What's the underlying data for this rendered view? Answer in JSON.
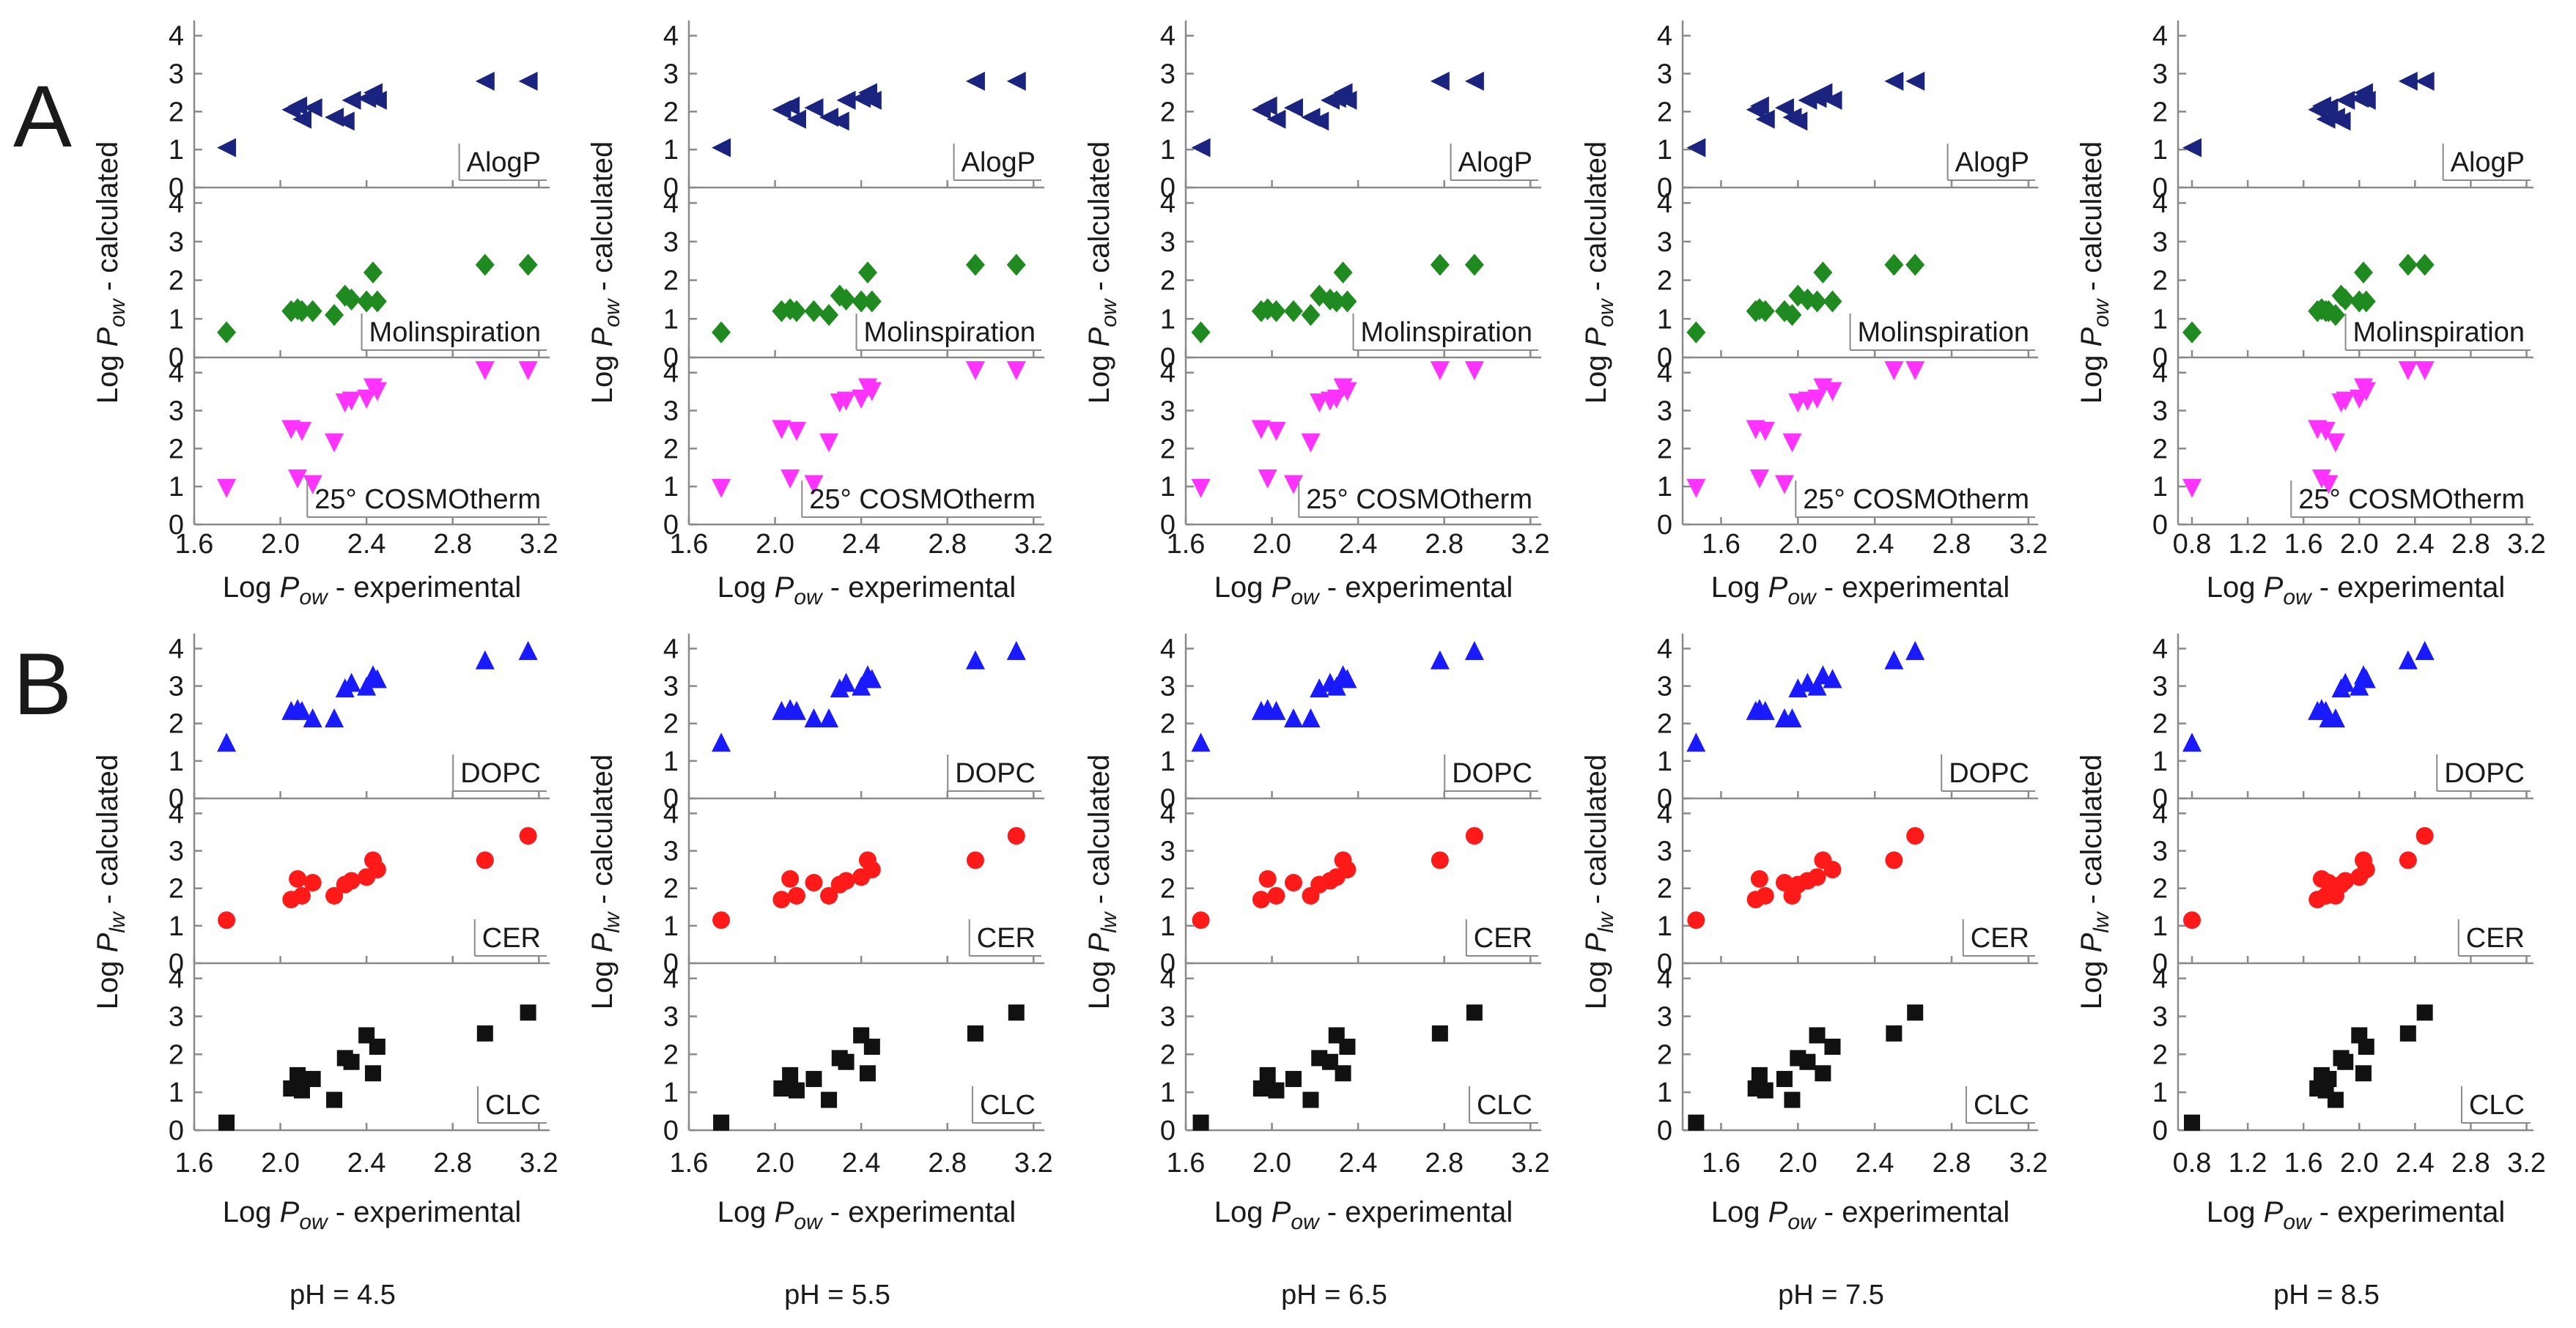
{
  "figure": {
    "panel_letters": [
      "A",
      "B"
    ],
    "axis_text": {
      "x_label_prefix": "Log ",
      "x_label_symbol": "P",
      "x_label_sub": "ow",
      "x_label_suffix": " - experimental",
      "y_label_prefix": "Log ",
      "y_label_symbol": "P",
      "y_label_sub_A": "ow",
      "y_label_sub_B": "lw",
      "y_label_suffix": " - calculated"
    },
    "ph_labels": [
      "pH = 4.5",
      "pH = 5.5",
      "pH = 6.5",
      "pH = 7.5",
      "pH = 8.5"
    ]
  },
  "chart_data": {
    "type": "scatter",
    "title": "",
    "layout": "2 panel groups (A, B) x 5 pH columns, each a stack of 3 shared-x subplots",
    "ylim": [
      0,
      4.4
    ],
    "yticks": [
      0,
      1,
      2,
      3,
      4
    ],
    "columns": [
      {
        "ph": "pH = 4.5",
        "xlim": [
          1.6,
          3.25
        ],
        "xticks": [
          "1.6",
          "2.0",
          "2.4",
          "2.8",
          "3.2"
        ],
        "x": [
          1.75,
          2.05,
          2.08,
          2.1,
          2.15,
          2.25,
          2.3,
          2.33,
          2.4,
          2.43,
          2.45,
          2.95,
          3.15
        ]
      },
      {
        "ph": "pH = 5.5",
        "xlim": [
          1.6,
          3.25
        ],
        "xticks": [
          "1.6",
          "2.0",
          "2.4",
          "2.8",
          "3.2"
        ],
        "x": [
          1.75,
          2.03,
          2.07,
          2.1,
          2.18,
          2.25,
          2.3,
          2.33,
          2.4,
          2.43,
          2.45,
          2.93,
          3.12
        ]
      },
      {
        "ph": "pH = 6.5",
        "xlim": [
          1.6,
          3.25
        ],
        "xticks": [
          "1.6",
          "2.0",
          "2.4",
          "2.8",
          "3.2"
        ],
        "x": [
          1.67,
          1.95,
          1.98,
          2.02,
          2.1,
          2.18,
          2.22,
          2.27,
          2.3,
          2.33,
          2.35,
          2.78,
          2.94
        ]
      },
      {
        "ph": "pH = 7.5",
        "xlim": [
          1.4,
          3.25
        ],
        "xticks": [
          "1.6",
          "2.0",
          "2.4",
          "2.8",
          "3.2"
        ],
        "x": [
          1.47,
          1.78,
          1.8,
          1.83,
          1.93,
          1.97,
          2.0,
          2.05,
          2.1,
          2.13,
          2.18,
          2.5,
          2.61
        ]
      },
      {
        "ph": "pH = 8.5",
        "xlim": [
          0.7,
          3.25
        ],
        "xticks": [
          "0.8",
          "1.2",
          "1.6",
          "2.0",
          "2.4",
          "2.8",
          "3.2"
        ],
        "x": [
          0.8,
          1.7,
          1.73,
          1.76,
          1.78,
          1.83,
          1.87,
          1.9,
          2.0,
          2.03,
          2.05,
          2.35,
          2.47
        ]
      }
    ],
    "series": [
      {
        "panel": "A",
        "name": "AlogP",
        "marker": "triangle-left",
        "color": "#1a237e",
        "values": [
          1.05,
          2.05,
          2.15,
          1.8,
          2.1,
          1.85,
          1.75,
          2.3,
          2.35,
          2.5,
          2.3,
          2.8,
          2.8
        ]
      },
      {
        "panel": "A",
        "name": "Molinspiration",
        "marker": "diamond",
        "color": "#1f8a1f",
        "values": [
          0.65,
          1.2,
          1.25,
          1.2,
          1.2,
          1.1,
          1.6,
          1.5,
          1.45,
          2.2,
          1.45,
          2.4,
          2.4
        ]
      },
      {
        "panel": "A",
        "name": "25° COSMOtherm",
        "marker": "triangle-down",
        "color": "#ff33ff",
        "values": [
          0.95,
          2.5,
          1.2,
          2.45,
          1.05,
          2.15,
          3.2,
          3.25,
          3.3,
          3.6,
          3.5,
          4.05,
          4.05
        ]
      },
      {
        "panel": "B",
        "name": "DOPC",
        "marker": "triangle-up",
        "color": "#1a1aff",
        "values": [
          1.5,
          2.35,
          2.4,
          2.35,
          2.15,
          2.15,
          2.95,
          3.1,
          3.0,
          3.3,
          3.2,
          3.7,
          3.95
        ]
      },
      {
        "panel": "B",
        "name": "CER",
        "marker": "circle",
        "color": "#ff1a1a",
        "values": [
          1.15,
          1.7,
          2.25,
          1.8,
          2.15,
          1.8,
          2.1,
          2.2,
          2.3,
          2.75,
          2.5,
          2.75,
          3.4
        ]
      },
      {
        "panel": "B",
        "name": "CLC",
        "marker": "square",
        "color": "#111111",
        "values": [
          0.2,
          1.1,
          1.45,
          1.05,
          1.35,
          0.8,
          1.9,
          1.8,
          2.5,
          1.5,
          2.2,
          2.55,
          3.1
        ]
      }
    ]
  }
}
